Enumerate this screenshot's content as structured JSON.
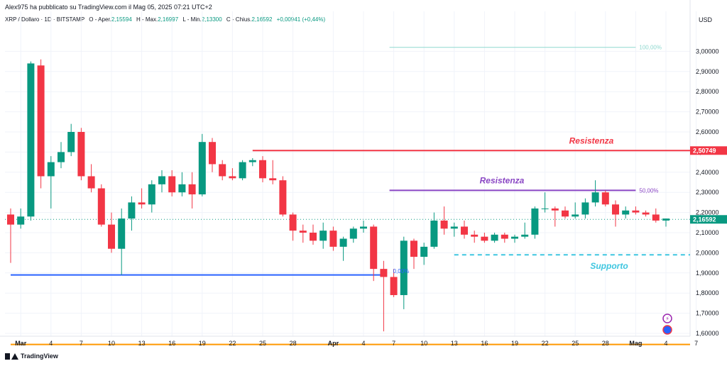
{
  "header": {
    "publisher_text": "Alex975 ha pubblicato su TradingView.com il Mag 05, 2025 07:21 UTC+2"
  },
  "legend": {
    "symbol": "XRP / Dollaro · 1D · BITSTAMP",
    "open_label": "O - Aper.",
    "open_value": "2,15594",
    "high_label": "H - Max.",
    "high_value": "2,16997",
    "low_label": "L - Min.",
    "low_value": "2,13300",
    "close_label": "C - Chius.",
    "close_value": "2,16592",
    "change_value": "+0,00941 (+0,44%)"
  },
  "footer": {
    "brand": "TradingView"
  },
  "colors": {
    "up": "#089981",
    "down": "#f23645",
    "resistance_red": "#f23645",
    "resistance_purple": "#8a46c4",
    "support_dashed": "#3ec6e0",
    "support_blue": "#2962ff",
    "bottom_orange": "#ff9800",
    "fib_teal": "#8fd8cf"
  },
  "chart_data": {
    "type": "candlestick",
    "price_axis_unit": "USD",
    "ylim": [
      1.55,
      3.07
    ],
    "y_ticks": [
      1.6,
      1.7,
      1.8,
      1.9,
      2.0,
      2.1,
      2.2,
      2.3,
      2.4,
      2.5,
      2.6,
      2.7,
      2.8,
      2.9,
      3.0
    ],
    "y_tick_labels": [
      "1,60000",
      "1,70000",
      "1,80000",
      "1,90000",
      "2,00000",
      "2,10000",
      "2,20000",
      "2,30000",
      "2,40000",
      "2,50000",
      "2,60000",
      "2,70000",
      "2,80000",
      "2,90000",
      "3,00000"
    ],
    "x_ticks": [
      {
        "label": "Mar",
        "index": 1,
        "bold": true
      },
      {
        "label": "4",
        "index": 4
      },
      {
        "label": "7",
        "index": 7
      },
      {
        "label": "10",
        "index": 10
      },
      {
        "label": "13",
        "index": 13
      },
      {
        "label": "16",
        "index": 16
      },
      {
        "label": "19",
        "index": 19
      },
      {
        "label": "22",
        "index": 22
      },
      {
        "label": "25",
        "index": 25
      },
      {
        "label": "28",
        "index": 28
      },
      {
        "label": "Apr",
        "index": 32,
        "bold": true
      },
      {
        "label": "4",
        "index": 35
      },
      {
        "label": "7",
        "index": 38
      },
      {
        "label": "10",
        "index": 41
      },
      {
        "label": "13",
        "index": 44
      },
      {
        "label": "16",
        "index": 47
      },
      {
        "label": "19",
        "index": 50
      },
      {
        "label": "22",
        "index": 53
      },
      {
        "label": "25",
        "index": 56
      },
      {
        "label": "28",
        "index": 59
      },
      {
        "label": "Mag",
        "index": 62,
        "bold": true
      },
      {
        "label": "4",
        "index": 65
      },
      {
        "label": "7",
        "index": 68
      }
    ],
    "candles": [
      {
        "o": 2.19,
        "h": 2.22,
        "l": 1.95,
        "c": 2.14
      },
      {
        "o": 2.14,
        "h": 2.22,
        "l": 2.12,
        "c": 2.18
      },
      {
        "o": 2.18,
        "h": 2.95,
        "l": 2.16,
        "c": 2.94
      },
      {
        "o": 2.93,
        "h": 2.96,
        "l": 2.32,
        "c": 2.38
      },
      {
        "o": 2.38,
        "h": 2.48,
        "l": 2.22,
        "c": 2.45
      },
      {
        "o": 2.45,
        "h": 2.55,
        "l": 2.42,
        "c": 2.5
      },
      {
        "o": 2.5,
        "h": 2.64,
        "l": 2.48,
        "c": 2.6
      },
      {
        "o": 2.6,
        "h": 2.62,
        "l": 2.36,
        "c": 2.38
      },
      {
        "o": 2.38,
        "h": 2.44,
        "l": 2.3,
        "c": 2.32
      },
      {
        "o": 2.32,
        "h": 2.34,
        "l": 2.13,
        "c": 2.14
      },
      {
        "o": 2.14,
        "h": 2.2,
        "l": 2.0,
        "c": 2.02
      },
      {
        "o": 2.02,
        "h": 2.22,
        "l": 1.89,
        "c": 2.17
      },
      {
        "o": 2.17,
        "h": 2.28,
        "l": 2.11,
        "c": 2.25
      },
      {
        "o": 2.25,
        "h": 2.32,
        "l": 2.22,
        "c": 2.24
      },
      {
        "o": 2.24,
        "h": 2.36,
        "l": 2.2,
        "c": 2.34
      },
      {
        "o": 2.34,
        "h": 2.41,
        "l": 2.3,
        "c": 2.38
      },
      {
        "o": 2.38,
        "h": 2.41,
        "l": 2.28,
        "c": 2.3
      },
      {
        "o": 2.3,
        "h": 2.4,
        "l": 2.28,
        "c": 2.34
      },
      {
        "o": 2.34,
        "h": 2.4,
        "l": 2.22,
        "c": 2.29
      },
      {
        "o": 2.29,
        "h": 2.59,
        "l": 2.28,
        "c": 2.55
      },
      {
        "o": 2.55,
        "h": 2.57,
        "l": 2.4,
        "c": 2.44
      },
      {
        "o": 2.44,
        "h": 2.46,
        "l": 2.36,
        "c": 2.38
      },
      {
        "o": 2.38,
        "h": 2.42,
        "l": 2.36,
        "c": 2.37
      },
      {
        "o": 2.37,
        "h": 2.46,
        "l": 2.36,
        "c": 2.45
      },
      {
        "o": 2.45,
        "h": 2.47,
        "l": 2.43,
        "c": 2.46
      },
      {
        "o": 2.46,
        "h": 2.48,
        "l": 2.35,
        "c": 2.37
      },
      {
        "o": 2.37,
        "h": 2.46,
        "l": 2.34,
        "c": 2.36
      },
      {
        "o": 2.36,
        "h": 2.38,
        "l": 2.18,
        "c": 2.19
      },
      {
        "o": 2.19,
        "h": 2.2,
        "l": 2.06,
        "c": 2.11
      },
      {
        "o": 2.11,
        "h": 2.14,
        "l": 2.05,
        "c": 2.1
      },
      {
        "o": 2.1,
        "h": 2.14,
        "l": 2.04,
        "c": 2.06
      },
      {
        "o": 2.06,
        "h": 2.15,
        "l": 2.02,
        "c": 2.11
      },
      {
        "o": 2.11,
        "h": 2.13,
        "l": 2.01,
        "c": 2.03
      },
      {
        "o": 2.03,
        "h": 2.08,
        "l": 1.96,
        "c": 2.07
      },
      {
        "o": 2.07,
        "h": 2.13,
        "l": 2.05,
        "c": 2.12
      },
      {
        "o": 2.12,
        "h": 2.16,
        "l": 2.1,
        "c": 2.13
      },
      {
        "o": 2.13,
        "h": 2.14,
        "l": 1.86,
        "c": 1.92
      },
      {
        "o": 1.92,
        "h": 1.96,
        "l": 1.61,
        "c": 1.88
      },
      {
        "o": 1.88,
        "h": 1.92,
        "l": 1.78,
        "c": 1.79
      },
      {
        "o": 1.79,
        "h": 2.08,
        "l": 1.72,
        "c": 2.06
      },
      {
        "o": 2.06,
        "h": 2.07,
        "l": 1.92,
        "c": 1.98
      },
      {
        "o": 1.98,
        "h": 2.05,
        "l": 1.94,
        "c": 2.03
      },
      {
        "o": 2.03,
        "h": 2.2,
        "l": 2.02,
        "c": 2.16
      },
      {
        "o": 2.16,
        "h": 2.23,
        "l": 2.09,
        "c": 2.12
      },
      {
        "o": 2.12,
        "h": 2.15,
        "l": 2.08,
        "c": 2.13
      },
      {
        "o": 2.13,
        "h": 2.16,
        "l": 2.07,
        "c": 2.09
      },
      {
        "o": 2.09,
        "h": 2.11,
        "l": 2.05,
        "c": 2.08
      },
      {
        "o": 2.08,
        "h": 2.1,
        "l": 2.05,
        "c": 2.06
      },
      {
        "o": 2.06,
        "h": 2.1,
        "l": 2.05,
        "c": 2.09
      },
      {
        "o": 2.09,
        "h": 2.1,
        "l": 2.05,
        "c": 2.07
      },
      {
        "o": 2.07,
        "h": 2.09,
        "l": 2.05,
        "c": 2.08
      },
      {
        "o": 2.08,
        "h": 2.15,
        "l": 2.07,
        "c": 2.09
      },
      {
        "o": 2.09,
        "h": 2.23,
        "l": 2.07,
        "c": 2.22
      },
      {
        "o": 2.22,
        "h": 2.3,
        "l": 2.2,
        "c": 2.22
      },
      {
        "o": 2.22,
        "h": 2.23,
        "l": 2.13,
        "c": 2.21
      },
      {
        "o": 2.21,
        "h": 2.23,
        "l": 2.17,
        "c": 2.18
      },
      {
        "o": 2.18,
        "h": 2.25,
        "l": 2.17,
        "c": 2.19
      },
      {
        "o": 2.19,
        "h": 2.27,
        "l": 2.17,
        "c": 2.25
      },
      {
        "o": 2.25,
        "h": 2.36,
        "l": 2.23,
        "c": 2.3
      },
      {
        "o": 2.3,
        "h": 2.31,
        "l": 2.23,
        "c": 2.24
      },
      {
        "o": 2.24,
        "h": 2.26,
        "l": 2.13,
        "c": 2.19
      },
      {
        "o": 2.19,
        "h": 2.23,
        "l": 2.17,
        "c": 2.21
      },
      {
        "o": 2.21,
        "h": 2.23,
        "l": 2.19,
        "c": 2.2
      },
      {
        "o": 2.2,
        "h": 2.21,
        "l": 2.18,
        "c": 2.19
      },
      {
        "o": 2.19,
        "h": 2.22,
        "l": 2.15,
        "c": 2.16
      },
      {
        "o": 2.16,
        "h": 2.17,
        "l": 2.13,
        "c": 2.17
      }
    ],
    "current_price": 2.16592,
    "current_price_label": "2,16592",
    "annotations": [
      {
        "kind": "resistance",
        "label": "Resistenza",
        "price": 2.50749,
        "price_label": "2,50749",
        "from_index": 24,
        "color_key": "resistance_red"
      },
      {
        "kind": "resistance",
        "label": "Resistenza",
        "price": 2.31,
        "from_index": 38,
        "to_index": 62,
        "color_key": "resistance_purple",
        "fib_label": "50,00%"
      },
      {
        "kind": "support",
        "label": "Supporto",
        "price": 1.99,
        "from_index": 44,
        "dashed": true,
        "color_key": "support_dashed"
      },
      {
        "kind": "line",
        "price": 1.89,
        "from_index": 0,
        "to_index": 37,
        "color_key": "support_blue"
      },
      {
        "kind": "line",
        "price": 1.545,
        "from_index": 0,
        "color_key": "bottom_orange"
      },
      {
        "kind": "fib",
        "price": 3.02,
        "from_index": 38,
        "to_index": 62,
        "color_key": "fib_teal",
        "fib_label": "100,00%"
      },
      {
        "kind": "fib",
        "price": 1.91,
        "from_index": 38,
        "to_index": 38,
        "color_key": "support_blue",
        "fib_label": "0,00%"
      }
    ]
  }
}
